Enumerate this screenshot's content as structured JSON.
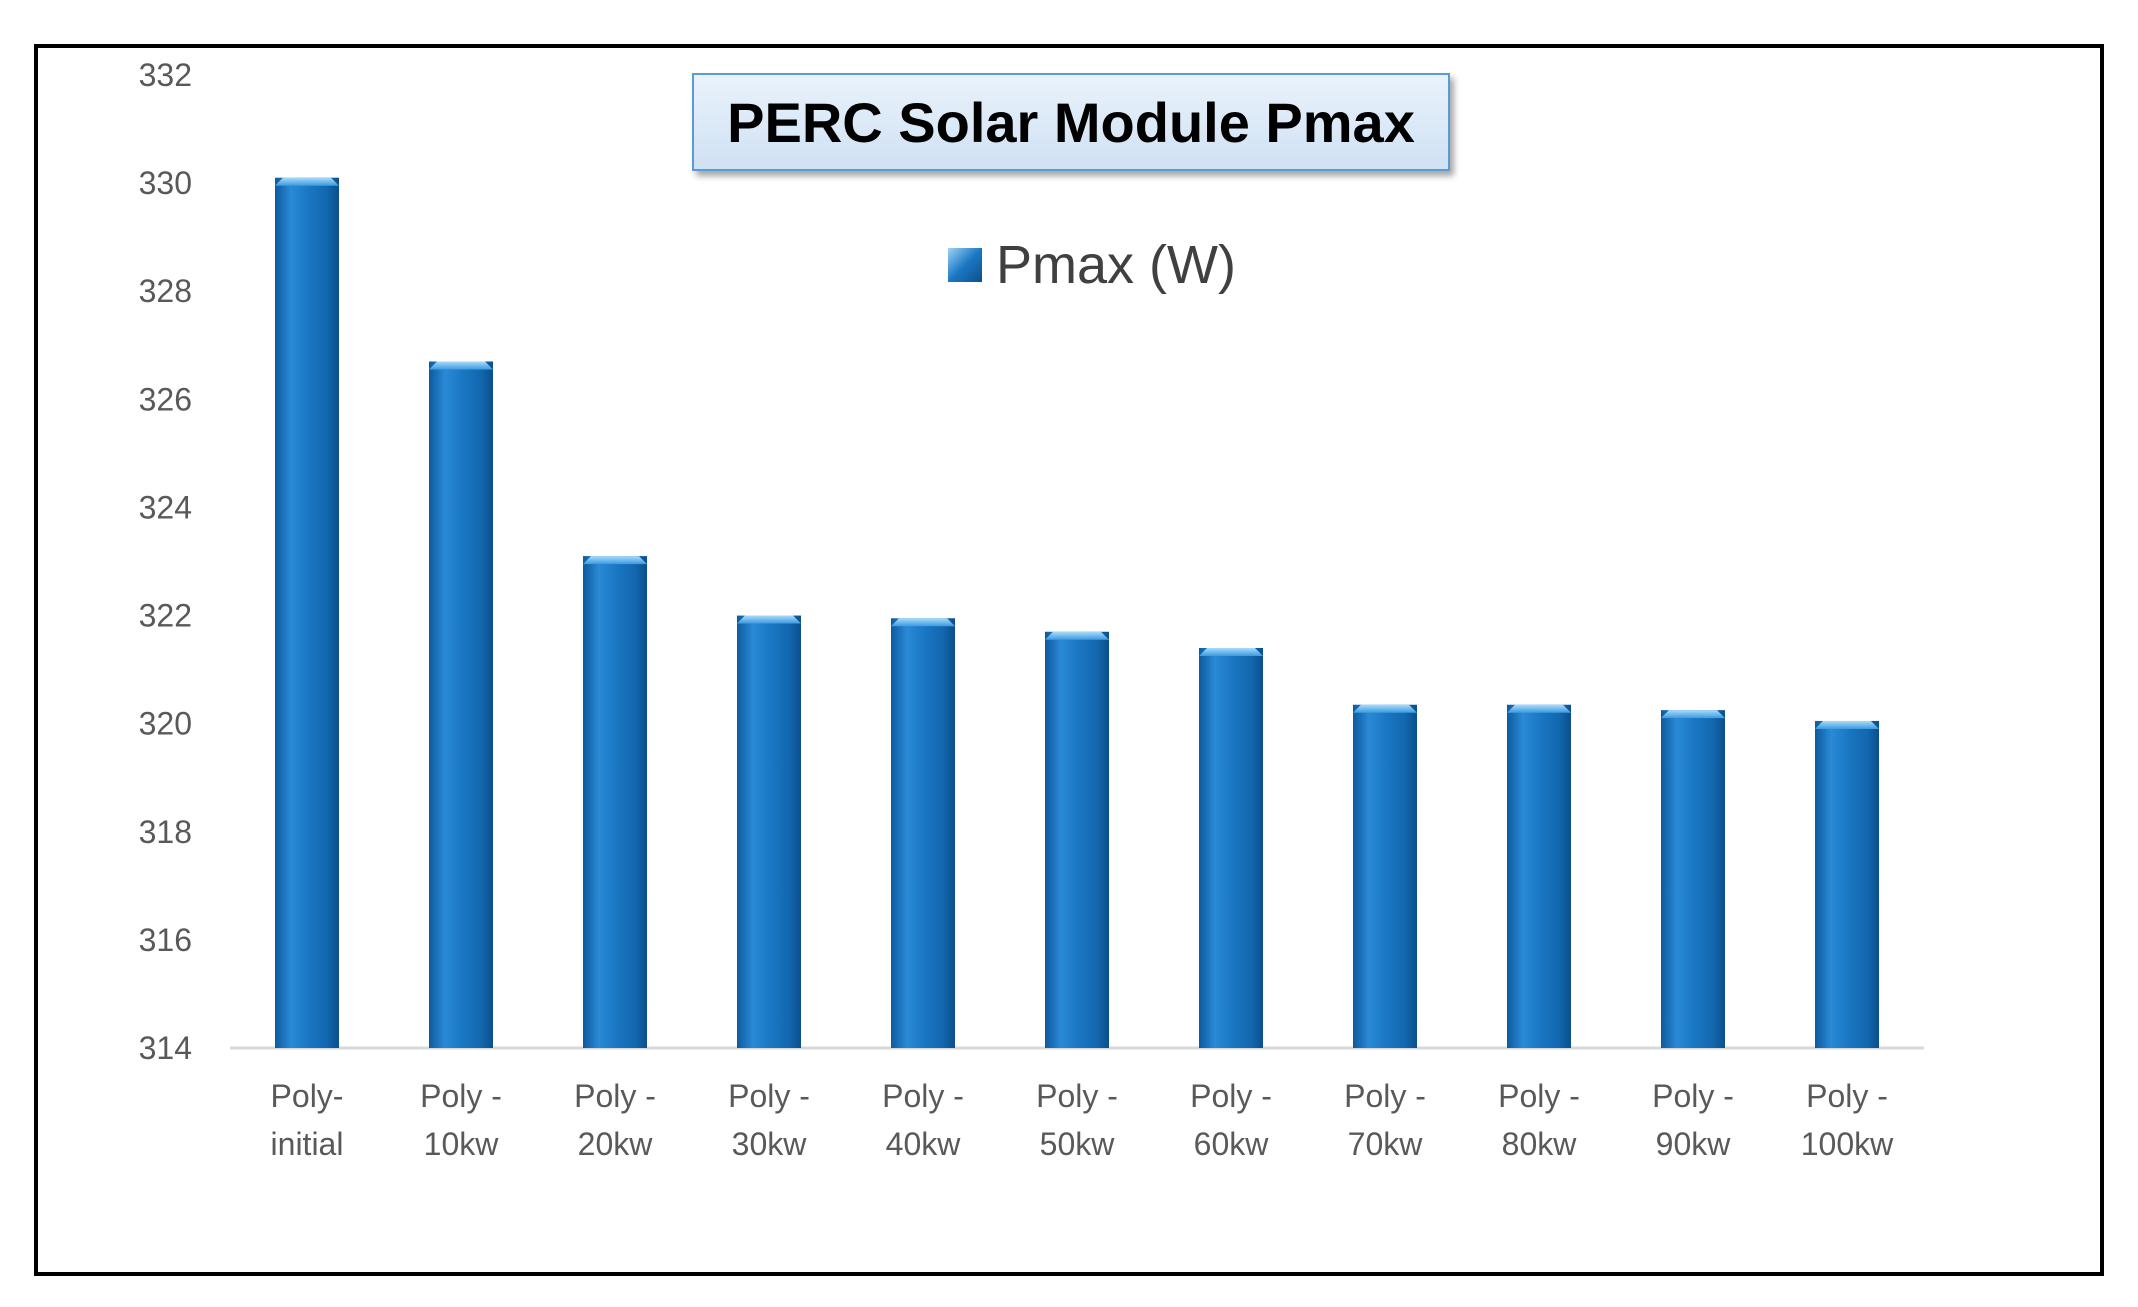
{
  "chart_data": {
    "type": "bar",
    "title": "PERC Solar Module  Pmax",
    "legend": {
      "label": "Pmax (W)",
      "placement": "top-center"
    },
    "categories": [
      [
        "Poly-",
        "initial"
      ],
      [
        "Poly -",
        "10kw"
      ],
      [
        "Poly -",
        "20kw"
      ],
      [
        "Poly -",
        "30kw"
      ],
      [
        "Poly -",
        "40kw"
      ],
      [
        "Poly -",
        "50kw"
      ],
      [
        "Poly -",
        "60kw"
      ],
      [
        "Poly -",
        "70kw"
      ],
      [
        "Poly -",
        "80kw"
      ],
      [
        "Poly -",
        "90kw"
      ],
      [
        "Poly -",
        "100kw"
      ]
    ],
    "series": [
      {
        "name": "Pmax (W)",
        "values": [
          330.1,
          326.7,
          323.1,
          322.0,
          321.95,
          321.7,
          321.4,
          320.35,
          320.35,
          320.25,
          320.05
        ]
      }
    ],
    "ylim": [
      314,
      332
    ],
    "yticks": [
      314,
      316,
      318,
      320,
      322,
      324,
      326,
      328,
      330,
      332
    ],
    "grid": false,
    "xlabel": "",
    "ylabel": "",
    "colors": {
      "bar_light": "#5fb0ea",
      "bar_mid": "#1b78c4",
      "bar_dark": "#0d5a9e",
      "axis": "#d9d9d9"
    }
  }
}
